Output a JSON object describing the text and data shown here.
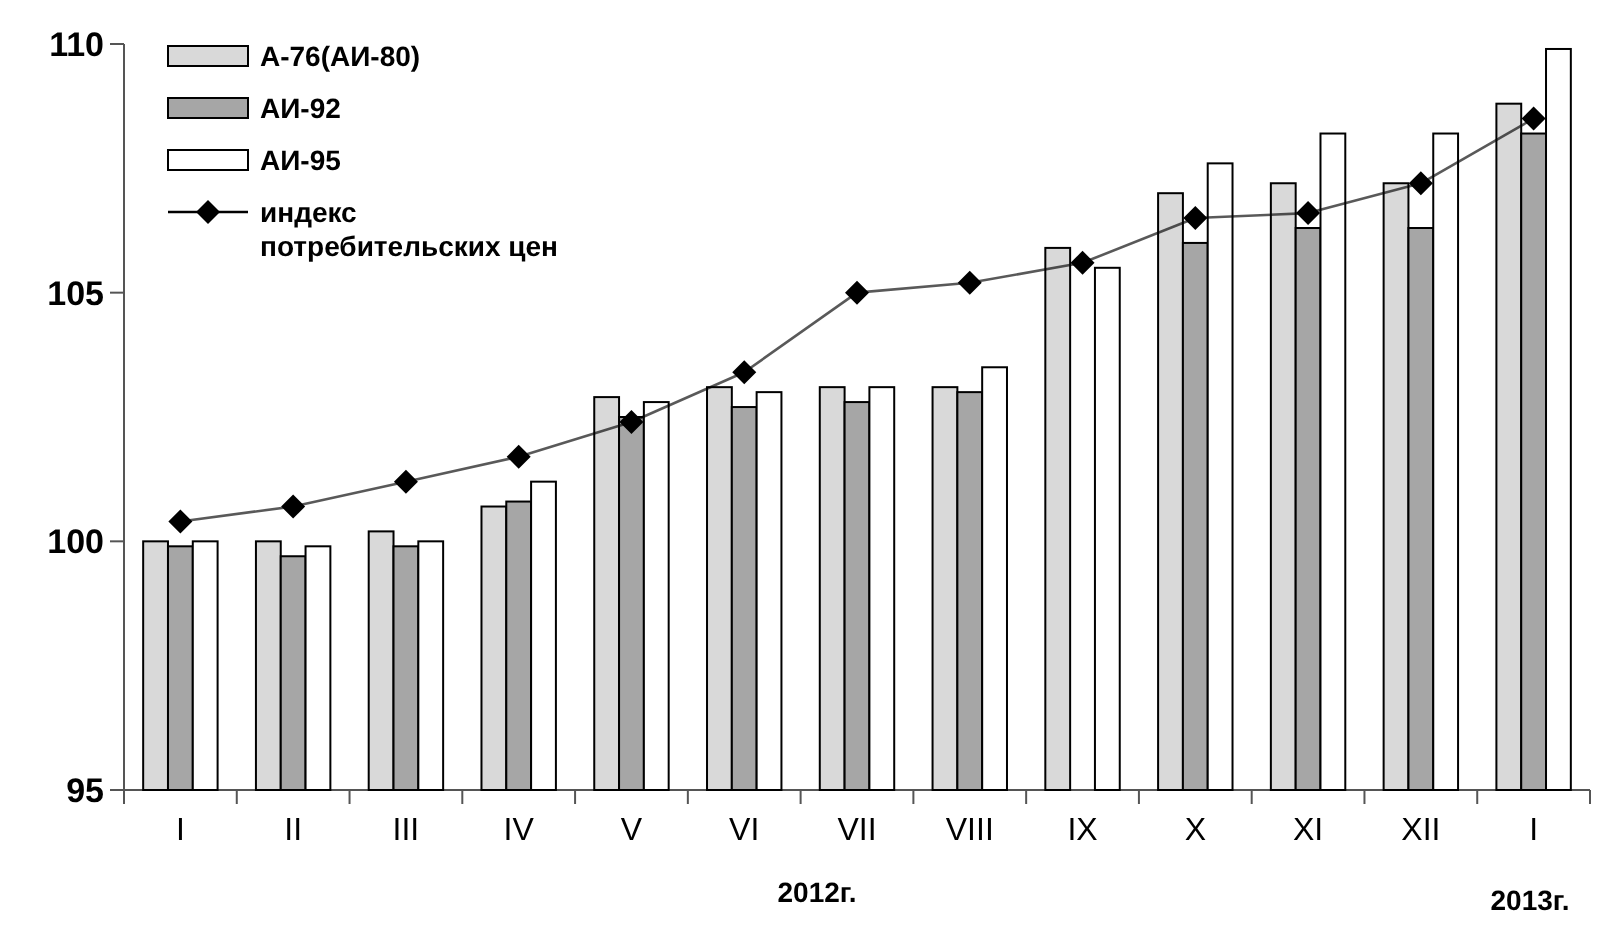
{
  "chart_data": {
    "type": "bar",
    "categories": [
      "I",
      "II",
      "III",
      "IV",
      "V",
      "VI",
      "VII",
      "VIII",
      "IX",
      "X",
      "XI",
      "XII",
      "I"
    ],
    "series": [
      {
        "name": "А-76(АИ-80)",
        "color": "#d9d9d9",
        "values": [
          100,
          100,
          100.2,
          100.7,
          102.9,
          103.1,
          103.1,
          103.1,
          105.9,
          107.0,
          107.2,
          107.2,
          108.8
        ]
      },
      {
        "name": "АИ-92",
        "color": "#a6a6a6",
        "values": [
          99.9,
          99.7,
          99.9,
          100.8,
          102.5,
          102.7,
          102.8,
          103.0,
          null,
          106.0,
          106.3,
          106.3,
          108.2
        ]
      },
      {
        "name": "АИ-95",
        "color": "#ffffff",
        "values": [
          100,
          99.9,
          100,
          101.2,
          102.8,
          103.0,
          103.1,
          103.5,
          105.5,
          107.6,
          108.2,
          108.2,
          109.9
        ]
      },
      {
        "name": "индекс потребительских  цен",
        "type": "line",
        "color": "#000000",
        "marker": "diamond",
        "values": [
          100.4,
          100.7,
          101.2,
          101.7,
          102.4,
          103.4,
          105.0,
          105.2,
          105.6,
          106.5,
          106.6,
          107.2,
          108.5
        ]
      }
    ],
    "ylim": [
      95,
      110
    ],
    "yticks": [
      95,
      100,
      105,
      110
    ],
    "grid": false,
    "legend": "top left",
    "annotations": [
      "2012г.",
      "2013г."
    ]
  }
}
